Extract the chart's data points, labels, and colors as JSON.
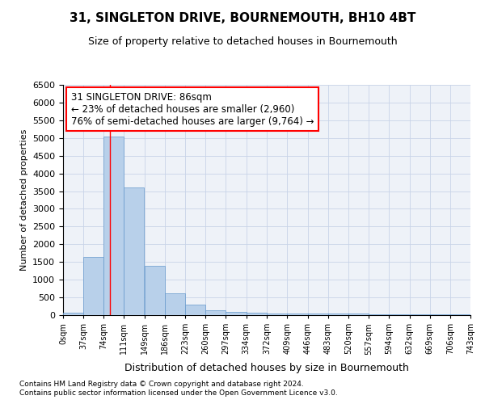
{
  "title1": "31, SINGLETON DRIVE, BOURNEMOUTH, BH10 4BT",
  "title2": "Size of property relative to detached houses in Bournemouth",
  "xlabel": "Distribution of detached houses by size in Bournemouth",
  "ylabel": "Number of detached properties",
  "footnote1": "Contains HM Land Registry data © Crown copyright and database right 2024.",
  "footnote2": "Contains public sector information licensed under the Open Government Licence v3.0.",
  "bin_edges": [
    0,
    37,
    74,
    111,
    149,
    186,
    223,
    260,
    297,
    334,
    372,
    409,
    446,
    483,
    520,
    557,
    594,
    632,
    669,
    706,
    743
  ],
  "bar_values": [
    75,
    1650,
    5050,
    3600,
    1400,
    620,
    290,
    140,
    100,
    75,
    55,
    50,
    50,
    40,
    35,
    30,
    25,
    20,
    20,
    15
  ],
  "bar_color": "#b8d0ea",
  "bar_edgecolor": "#6699cc",
  "grid_color": "#c8d4e8",
  "bg_color": "#eef2f8",
  "red_line_x": 86,
  "annotation_line1": "31 SINGLETON DRIVE: 86sqm",
  "annotation_line2": "← 23% of detached houses are smaller (2,960)",
  "annotation_line3": "76% of semi-detached houses are larger (9,764) →",
  "annotation_box_color": "white",
  "annotation_border_color": "red",
  "ylim": [
    0,
    6500
  ],
  "yticks": [
    0,
    500,
    1000,
    1500,
    2000,
    2500,
    3000,
    3500,
    4000,
    4500,
    5000,
    5500,
    6000,
    6500
  ],
  "title1_fontsize": 11,
  "title2_fontsize": 9,
  "xlabel_fontsize": 9,
  "ylabel_fontsize": 8,
  "ytick_fontsize": 8,
  "xtick_fontsize": 7,
  "footnote_fontsize": 6.5,
  "annot_fontsize": 8.5
}
